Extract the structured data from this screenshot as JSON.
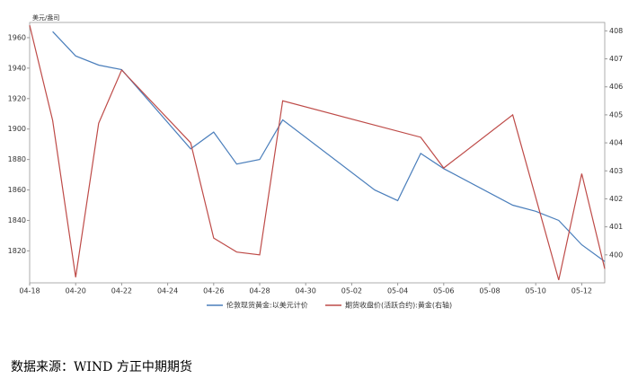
{
  "chart_data": {
    "type": "line",
    "y_axis_label": "美元/盎司",
    "source": "数据来源：WIND 方正中期期货",
    "xlim": [
      "04-18",
      "05-13"
    ],
    "xticks": [
      "04-18",
      "04-20",
      "04-22",
      "04-24",
      "04-26",
      "04-28",
      "04-30",
      "05-02",
      "05-04",
      "05-06",
      "05-08",
      "05-10",
      "05-12"
    ],
    "ylim": [
      1799,
      1970
    ],
    "yticks": [
      1820,
      1840,
      1860,
      1880,
      1900,
      1920,
      1940,
      1960
    ],
    "y2lim": [
      399,
      408.3
    ],
    "y2ticks": [
      400,
      401,
      402,
      403,
      404,
      405,
      406,
      407,
      408
    ],
    "legend": "bottom",
    "series": [
      {
        "name": "伦敦现货黄金:以美元计价",
        "color": "#4a7ebb",
        "x": [
          "04-19",
          "04-20",
          "04-21",
          "04-22",
          "04-25",
          "04-26",
          "04-27",
          "04-28",
          "04-29",
          "05-03",
          "05-04",
          "05-05",
          "05-06",
          "05-09",
          "05-10",
          "05-11",
          "05-12",
          "05-13"
        ],
        "values": [
          1964,
          1948,
          1942,
          1939,
          1887,
          1898,
          1877,
          1880,
          1906,
          1860,
          1853,
          1884,
          1874,
          1850,
          1846,
          1840,
          1824,
          1813
        ]
      },
      {
        "name": "期货收盘价(活跃合约):黄金(右轴)",
        "color": "#be4b48",
        "axis": "y2",
        "x": [
          "04-18",
          "04-19",
          "04-20",
          "04-21",
          "04-22",
          "04-25",
          "04-26",
          "04-27",
          "04-28",
          "04-29",
          "05-05",
          "05-06",
          "05-09",
          "05-11",
          "05-12",
          "05-13"
        ],
        "values": [
          408.2,
          404.8,
          399.2,
          404.7,
          406.6,
          404.0,
          400.6,
          400.1,
          400.0,
          405.5,
          404.2,
          403.1,
          405.0,
          399.1,
          402.9,
          399.5
        ]
      }
    ]
  }
}
